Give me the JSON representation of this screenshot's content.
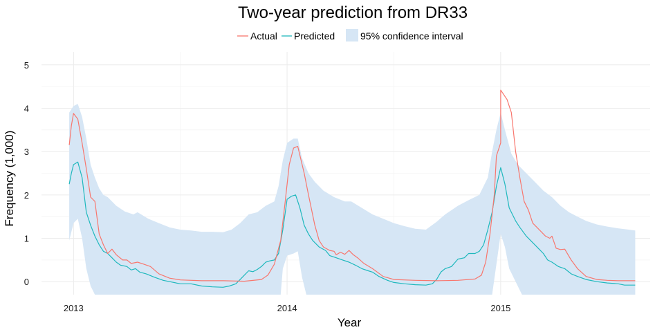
{
  "chart_data": {
    "type": "line",
    "title": "Two-year prediction from DR33",
    "xlabel": "Year",
    "ylabel": "Frequency (1,000)",
    "xlim": [
      2012.85,
      2015.7
    ],
    "ylim": [
      -0.3,
      5.3
    ],
    "x_ticks": [
      2013,
      2014,
      2015
    ],
    "x_tick_labels": [
      "2013",
      "2014",
      "2015"
    ],
    "y_ticks": [
      0,
      1,
      2,
      3,
      4,
      5
    ],
    "y_tick_labels": [
      "0",
      "1",
      "2",
      "3",
      "4",
      "5"
    ],
    "grid": true,
    "legend_position": "top",
    "legend": {
      "actual": "Actual",
      "predicted": "Predicted",
      "ci": "95% confidence interval"
    },
    "colors": {
      "actual": "#f8766d",
      "predicted": "#1fb8bd",
      "ci": "#d6e6f5"
    },
    "series": [
      {
        "name": "Actual",
        "points": [
          [
            2012.98,
            3.15
          ],
          [
            2012.99,
            3.6
          ],
          [
            2013.0,
            3.88
          ],
          [
            2013.02,
            3.75
          ],
          [
            2013.04,
            3.2
          ],
          [
            2013.06,
            2.6
          ],
          [
            2013.08,
            1.95
          ],
          [
            2013.1,
            1.85
          ],
          [
            2013.12,
            1.1
          ],
          [
            2013.14,
            0.85
          ],
          [
            2013.16,
            0.65
          ],
          [
            2013.18,
            0.75
          ],
          [
            2013.2,
            0.62
          ],
          [
            2013.23,
            0.5
          ],
          [
            2013.25,
            0.5
          ],
          [
            2013.27,
            0.42
          ],
          [
            2013.3,
            0.45
          ],
          [
            2013.33,
            0.4
          ],
          [
            2013.36,
            0.35
          ],
          [
            2013.4,
            0.18
          ],
          [
            2013.45,
            0.08
          ],
          [
            2013.5,
            0.04
          ],
          [
            2013.6,
            0.02
          ],
          [
            2013.7,
            0.02
          ],
          [
            2013.8,
            0.01
          ],
          [
            2013.88,
            0.05
          ],
          [
            2013.91,
            0.15
          ],
          [
            2013.94,
            0.4
          ],
          [
            2013.97,
            0.95
          ],
          [
            2013.99,
            1.8
          ],
          [
            2014.01,
            2.7
          ],
          [
            2014.03,
            3.08
          ],
          [
            2014.05,
            3.12
          ],
          [
            2014.08,
            2.5
          ],
          [
            2014.1,
            2.0
          ],
          [
            2014.13,
            1.3
          ],
          [
            2014.15,
            0.95
          ],
          [
            2014.17,
            0.8
          ],
          [
            2014.2,
            0.72
          ],
          [
            2014.22,
            0.7
          ],
          [
            2014.23,
            0.62
          ],
          [
            2014.25,
            0.68
          ],
          [
            2014.27,
            0.63
          ],
          [
            2014.29,
            0.72
          ],
          [
            2014.31,
            0.62
          ],
          [
            2014.33,
            0.55
          ],
          [
            2014.36,
            0.42
          ],
          [
            2014.4,
            0.3
          ],
          [
            2014.45,
            0.12
          ],
          [
            2014.5,
            0.05
          ],
          [
            2014.6,
            0.03
          ],
          [
            2014.7,
            0.02
          ],
          [
            2014.8,
            0.03
          ],
          [
            2014.88,
            0.06
          ],
          [
            2014.91,
            0.15
          ],
          [
            2014.93,
            0.45
          ],
          [
            2014.95,
            1.1
          ],
          [
            2014.97,
            2.0
          ],
          [
            2014.98,
            2.9
          ],
          [
            2015.0,
            3.2
          ],
          [
            2015.0,
            4.42
          ],
          [
            2015.03,
            4.2
          ],
          [
            2015.05,
            3.9
          ],
          [
            2015.07,
            3.0
          ],
          [
            2015.09,
            2.4
          ],
          [
            2015.11,
            1.85
          ],
          [
            2015.13,
            1.65
          ],
          [
            2015.15,
            1.35
          ],
          [
            2015.17,
            1.25
          ],
          [
            2015.19,
            1.15
          ],
          [
            2015.21,
            1.05
          ],
          [
            2015.23,
            1.0
          ],
          [
            2015.24,
            1.05
          ],
          [
            2015.26,
            0.77
          ],
          [
            2015.28,
            0.74
          ],
          [
            2015.3,
            0.75
          ],
          [
            2015.33,
            0.5
          ],
          [
            2015.36,
            0.3
          ],
          [
            2015.4,
            0.12
          ],
          [
            2015.45,
            0.05
          ],
          [
            2015.5,
            0.03
          ],
          [
            2015.55,
            0.02
          ],
          [
            2015.6,
            0.02
          ],
          [
            2015.63,
            0.02
          ]
        ]
      },
      {
        "name": "Predicted",
        "points": [
          [
            2012.98,
            2.25
          ],
          [
            2012.99,
            2.5
          ],
          [
            2013.0,
            2.7
          ],
          [
            2013.02,
            2.76
          ],
          [
            2013.04,
            2.4
          ],
          [
            2013.06,
            1.6
          ],
          [
            2013.08,
            1.3
          ],
          [
            2013.1,
            1.05
          ],
          [
            2013.12,
            0.85
          ],
          [
            2013.14,
            0.7
          ],
          [
            2013.16,
            0.65
          ],
          [
            2013.18,
            0.55
          ],
          [
            2013.2,
            0.45
          ],
          [
            2013.22,
            0.38
          ],
          [
            2013.25,
            0.35
          ],
          [
            2013.27,
            0.27
          ],
          [
            2013.29,
            0.3
          ],
          [
            2013.31,
            0.22
          ],
          [
            2013.34,
            0.18
          ],
          [
            2013.38,
            0.1
          ],
          [
            2013.42,
            0.03
          ],
          [
            2013.45,
            0.0
          ],
          [
            2013.5,
            -0.05
          ],
          [
            2013.55,
            -0.05
          ],
          [
            2013.6,
            -0.1
          ],
          [
            2013.65,
            -0.12
          ],
          [
            2013.7,
            -0.13
          ],
          [
            2013.73,
            -0.1
          ],
          [
            2013.76,
            -0.05
          ],
          [
            2013.78,
            0.05
          ],
          [
            2013.8,
            0.15
          ],
          [
            2013.82,
            0.25
          ],
          [
            2013.84,
            0.23
          ],
          [
            2013.86,
            0.28
          ],
          [
            2013.88,
            0.35
          ],
          [
            2013.9,
            0.45
          ],
          [
            2013.92,
            0.48
          ],
          [
            2013.94,
            0.5
          ],
          [
            2013.96,
            0.65
          ],
          [
            2013.98,
            1.2
          ],
          [
            2014.0,
            1.9
          ],
          [
            2014.02,
            1.97
          ],
          [
            2014.04,
            2.0
          ],
          [
            2014.06,
            1.7
          ],
          [
            2014.08,
            1.3
          ],
          [
            2014.1,
            1.1
          ],
          [
            2014.12,
            0.95
          ],
          [
            2014.15,
            0.8
          ],
          [
            2014.18,
            0.72
          ],
          [
            2014.2,
            0.6
          ],
          [
            2014.23,
            0.55
          ],
          [
            2014.26,
            0.5
          ],
          [
            2014.29,
            0.45
          ],
          [
            2014.32,
            0.38
          ],
          [
            2014.35,
            0.3
          ],
          [
            2014.38,
            0.25
          ],
          [
            2014.4,
            0.22
          ],
          [
            2014.43,
            0.12
          ],
          [
            2014.47,
            0.03
          ],
          [
            2014.5,
            -0.02
          ],
          [
            2014.55,
            -0.05
          ],
          [
            2014.6,
            -0.07
          ],
          [
            2014.65,
            -0.08
          ],
          [
            2014.68,
            -0.05
          ],
          [
            2014.7,
            0.05
          ],
          [
            2014.72,
            0.22
          ],
          [
            2014.74,
            0.3
          ],
          [
            2014.77,
            0.35
          ],
          [
            2014.8,
            0.52
          ],
          [
            2014.83,
            0.55
          ],
          [
            2014.85,
            0.65
          ],
          [
            2014.88,
            0.65
          ],
          [
            2014.9,
            0.7
          ],
          [
            2014.92,
            0.85
          ],
          [
            2014.94,
            1.2
          ],
          [
            2014.96,
            1.6
          ],
          [
            2014.98,
            2.2
          ],
          [
            2015.0,
            2.63
          ],
          [
            2015.02,
            2.25
          ],
          [
            2015.04,
            1.7
          ],
          [
            2015.07,
            1.4
          ],
          [
            2015.09,
            1.25
          ],
          [
            2015.12,
            1.05
          ],
          [
            2015.14,
            0.95
          ],
          [
            2015.16,
            0.85
          ],
          [
            2015.18,
            0.75
          ],
          [
            2015.2,
            0.65
          ],
          [
            2015.22,
            0.5
          ],
          [
            2015.24,
            0.45
          ],
          [
            2015.27,
            0.35
          ],
          [
            2015.3,
            0.3
          ],
          [
            2015.33,
            0.18
          ],
          [
            2015.36,
            0.12
          ],
          [
            2015.4,
            0.05
          ],
          [
            2015.45,
            0.0
          ],
          [
            2015.5,
            -0.03
          ],
          [
            2015.55,
            -0.05
          ],
          [
            2015.58,
            -0.08
          ],
          [
            2015.63,
            -0.08
          ]
        ]
      }
    ],
    "confidence_interval": {
      "name": "95% confidence interval",
      "upper": [
        [
          2012.98,
          3.9
        ],
        [
          2013.0,
          4.05
        ],
        [
          2013.02,
          4.1
        ],
        [
          2013.04,
          3.8
        ],
        [
          2013.06,
          3.3
        ],
        [
          2013.08,
          2.7
        ],
        [
          2013.1,
          2.4
        ],
        [
          2013.12,
          2.15
        ],
        [
          2013.14,
          2.0
        ],
        [
          2013.16,
          1.95
        ],
        [
          2013.2,
          1.75
        ],
        [
          2013.24,
          1.62
        ],
        [
          2013.28,
          1.55
        ],
        [
          2013.3,
          1.6
        ],
        [
          2013.35,
          1.45
        ],
        [
          2013.4,
          1.35
        ],
        [
          2013.45,
          1.25
        ],
        [
          2013.5,
          1.2
        ],
        [
          2013.55,
          1.18
        ],
        [
          2013.6,
          1.15
        ],
        [
          2013.65,
          1.15
        ],
        [
          2013.7,
          1.14
        ],
        [
          2013.74,
          1.2
        ],
        [
          2013.78,
          1.35
        ],
        [
          2013.82,
          1.55
        ],
        [
          2013.86,
          1.6
        ],
        [
          2013.9,
          1.75
        ],
        [
          2013.94,
          1.85
        ],
        [
          2013.96,
          2.2
        ],
        [
          2013.98,
          2.8
        ],
        [
          2014.0,
          3.2
        ],
        [
          2014.03,
          3.3
        ],
        [
          2014.05,
          3.3
        ],
        [
          2014.07,
          2.85
        ],
        [
          2014.1,
          2.5
        ],
        [
          2014.13,
          2.3
        ],
        [
          2014.17,
          2.1
        ],
        [
          2014.22,
          1.95
        ],
        [
          2014.27,
          1.85
        ],
        [
          2014.3,
          1.85
        ],
        [
          2014.35,
          1.7
        ],
        [
          2014.4,
          1.55
        ],
        [
          2014.45,
          1.45
        ],
        [
          2014.5,
          1.35
        ],
        [
          2014.55,
          1.28
        ],
        [
          2014.6,
          1.22
        ],
        [
          2014.65,
          1.2
        ],
        [
          2014.7,
          1.38
        ],
        [
          2014.74,
          1.55
        ],
        [
          2014.8,
          1.75
        ],
        [
          2014.85,
          1.88
        ],
        [
          2014.9,
          2.0
        ],
        [
          2014.94,
          2.4
        ],
        [
          2014.96,
          3.0
        ],
        [
          2014.98,
          3.5
        ],
        [
          2015.0,
          3.9
        ],
        [
          2015.02,
          3.5
        ],
        [
          2015.05,
          2.95
        ],
        [
          2015.08,
          2.7
        ],
        [
          2015.12,
          2.5
        ],
        [
          2015.16,
          2.3
        ],
        [
          2015.2,
          2.1
        ],
        [
          2015.24,
          1.95
        ],
        [
          2015.28,
          1.75
        ],
        [
          2015.32,
          1.6
        ],
        [
          2015.36,
          1.5
        ],
        [
          2015.4,
          1.4
        ],
        [
          2015.45,
          1.32
        ],
        [
          2015.5,
          1.27
        ],
        [
          2015.55,
          1.23
        ],
        [
          2015.6,
          1.2
        ],
        [
          2015.63,
          1.18
        ]
      ],
      "lower": [
        [
          2012.98,
          0.95
        ],
        [
          2013.0,
          1.35
        ],
        [
          2013.02,
          1.45
        ],
        [
          2013.04,
          1.0
        ],
        [
          2013.06,
          0.3
        ],
        [
          2013.08,
          -0.1
        ],
        [
          2013.1,
          -0.3
        ],
        [
          2013.97,
          -0.3
        ],
        [
          2013.98,
          0.3
        ],
        [
          2014.0,
          0.6
        ],
        [
          2014.03,
          0.65
        ],
        [
          2014.05,
          0.7
        ],
        [
          2014.07,
          0.1
        ],
        [
          2014.09,
          -0.3
        ],
        [
          2014.96,
          -0.3
        ],
        [
          2014.98,
          0.4
        ],
        [
          2015.0,
          1.1
        ],
        [
          2015.02,
          0.8
        ],
        [
          2015.04,
          0.3
        ],
        [
          2015.07,
          0.0
        ],
        [
          2015.09,
          -0.2
        ],
        [
          2015.1,
          -0.3
        ],
        [
          2015.63,
          -0.3
        ]
      ]
    }
  }
}
